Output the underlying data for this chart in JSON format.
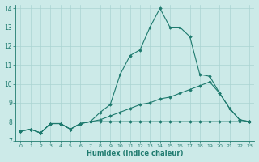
{
  "xlabel": "Humidex (Indice chaleur)",
  "bg_color": "#cceae8",
  "grid_color": "#aad4d2",
  "line_color": "#1e7a6e",
  "xlim": [
    -0.5,
    23.5
  ],
  "ylim": [
    7,
    14.2
  ],
  "yticks": [
    7,
    8,
    9,
    10,
    11,
    12,
    13,
    14
  ],
  "xticks": [
    0,
    1,
    2,
    3,
    4,
    5,
    6,
    7,
    8,
    9,
    10,
    11,
    12,
    13,
    14,
    15,
    16,
    17,
    18,
    19,
    20,
    21,
    22,
    23
  ],
  "series": [
    {
      "x": [
        0,
        1,
        2,
        3,
        4,
        5,
        6,
        7,
        8,
        9,
        10,
        11,
        12,
        13,
        14,
        15,
        16,
        17,
        18,
        19,
        20,
        21,
        22,
        23
      ],
      "y": [
        7.5,
        7.6,
        7.4,
        7.9,
        7.9,
        7.6,
        7.9,
        8.0,
        8.5,
        8.9,
        10.5,
        11.5,
        11.8,
        13.0,
        14.0,
        13.0,
        13.0,
        12.5,
        10.5,
        10.4,
        9.5,
        8.7,
        8.1,
        8.0
      ]
    },
    {
      "x": [
        0,
        1,
        2,
        3,
        4,
        5,
        6,
        7,
        8,
        9,
        10,
        11,
        12,
        13,
        14,
        15,
        16,
        17,
        18,
        19,
        20,
        21,
        22,
        23
      ],
      "y": [
        7.5,
        7.6,
        7.4,
        7.9,
        7.9,
        7.6,
        7.9,
        8.0,
        8.1,
        8.3,
        8.5,
        8.7,
        8.9,
        9.0,
        9.2,
        9.3,
        9.5,
        9.7,
        9.9,
        10.1,
        9.5,
        8.7,
        8.1,
        8.0
      ]
    },
    {
      "x": [
        0,
        1,
        2,
        3,
        4,
        5,
        6,
        7,
        8,
        9,
        10,
        11,
        12,
        13,
        14,
        15,
        16,
        17,
        18,
        19,
        20,
        21,
        22,
        23
      ],
      "y": [
        7.5,
        7.6,
        7.4,
        7.9,
        7.9,
        7.6,
        7.9,
        8.0,
        8.0,
        8.0,
        8.0,
        8.0,
        8.0,
        8.0,
        8.0,
        8.0,
        8.0,
        8.0,
        8.0,
        8.0,
        8.0,
        8.0,
        8.0,
        8.0
      ]
    }
  ]
}
